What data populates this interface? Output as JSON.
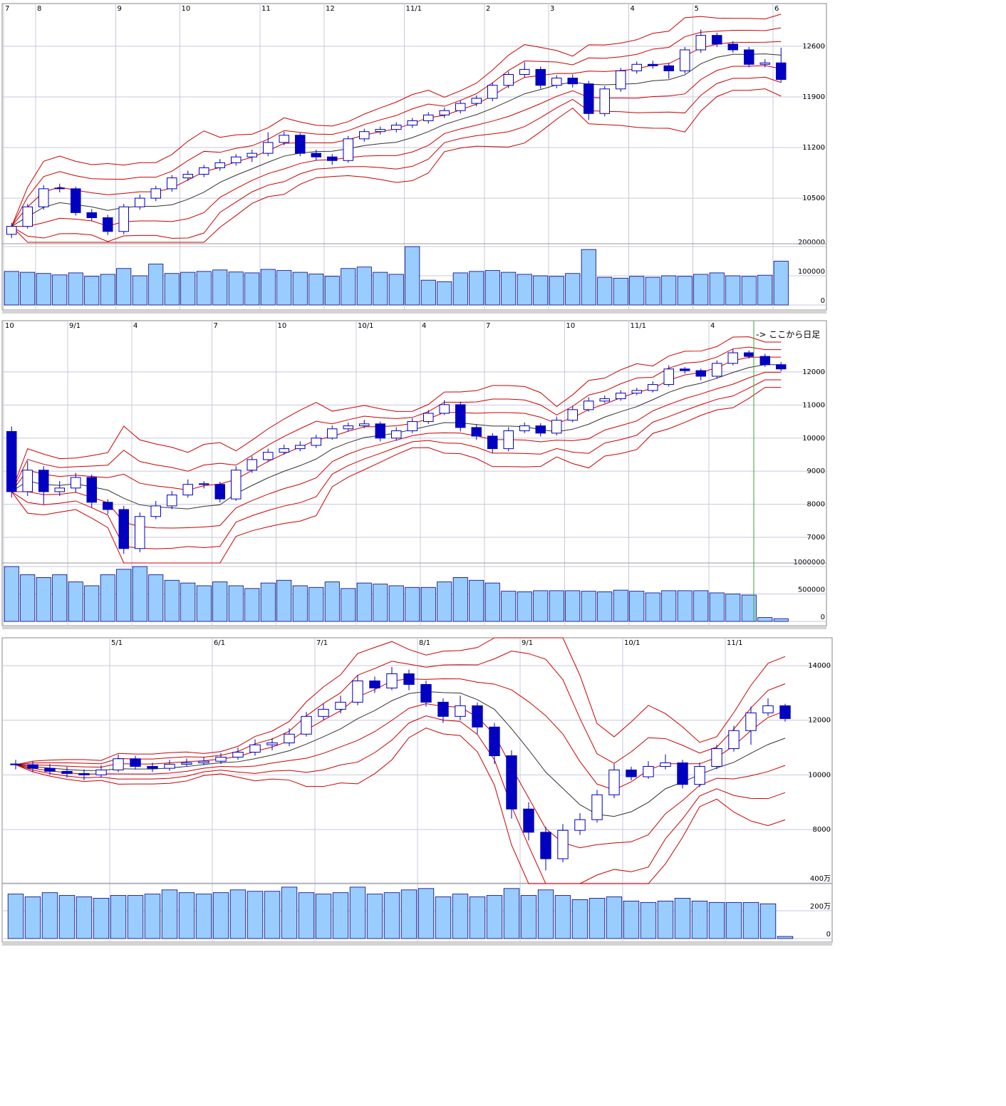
{
  "chart_data": [
    {
      "type": "candlestick",
      "xticks": [
        {
          "value": 0,
          "label": "7"
        },
        {
          "value": 2,
          "label": "8"
        },
        {
          "value": 7,
          "label": "9"
        },
        {
          "value": 11,
          "label": "10"
        },
        {
          "value": 16,
          "label": "11"
        },
        {
          "value": 20,
          "label": "12"
        },
        {
          "value": 25,
          "label": "11/1"
        },
        {
          "value": 30,
          "label": "2"
        },
        {
          "value": 34,
          "label": "3"
        },
        {
          "value": 39,
          "label": "4"
        },
        {
          "value": 43,
          "label": "5"
        },
        {
          "value": 48,
          "label": "6"
        }
      ],
      "ylim": [
        9890,
        13190
      ],
      "yticks": [
        10500,
        11200,
        11900,
        12600
      ],
      "volume_ylim": [
        0,
        209800
      ],
      "volume_yticks": [
        0,
        100000,
        200000
      ],
      "up_color": "#ffffff",
      "down_color": "#0000c0",
      "volume_color": "#99ccff",
      "band_color": "#cc0000",
      "ohlc": [
        [
          10000,
          10160,
          9950,
          10110
        ],
        [
          10110,
          10420,
          10080,
          10380
        ],
        [
          10380,
          10680,
          10340,
          10630
        ],
        [
          10640,
          10700,
          10580,
          10630
        ],
        [
          10630,
          10660,
          10260,
          10300
        ],
        [
          10300,
          10350,
          10190,
          10230
        ],
        [
          10230,
          10270,
          9990,
          10040
        ],
        [
          10040,
          10420,
          10000,
          10380
        ],
        [
          10380,
          10550,
          10340,
          10500
        ],
        [
          10500,
          10670,
          10460,
          10630
        ],
        [
          10630,
          10820,
          10590,
          10780
        ],
        [
          10780,
          10880,
          10740,
          10830
        ],
        [
          10830,
          10960,
          10790,
          10920
        ],
        [
          10920,
          11040,
          10880,
          10990
        ],
        [
          10990,
          11110,
          10950,
          11070
        ],
        [
          11070,
          11170,
          11000,
          11120
        ],
        [
          11120,
          11410,
          11080,
          11270
        ],
        [
          11270,
          11420,
          11230,
          11370
        ],
        [
          11370,
          11400,
          11080,
          11120
        ],
        [
          11120,
          11170,
          11020,
          11070
        ],
        [
          11070,
          11110,
          10960,
          11020
        ],
        [
          11020,
          11360,
          10990,
          11320
        ],
        [
          11320,
          11460,
          11280,
          11420
        ],
        [
          11420,
          11490,
          11380,
          11450
        ],
        [
          11450,
          11550,
          11410,
          11510
        ],
        [
          11510,
          11610,
          11470,
          11570
        ],
        [
          11570,
          11690,
          11530,
          11650
        ],
        [
          11650,
          11750,
          11610,
          11710
        ],
        [
          11710,
          11850,
          11670,
          11810
        ],
        [
          11810,
          11920,
          11770,
          11880
        ],
        [
          11880,
          12100,
          11840,
          12060
        ],
        [
          12060,
          12250,
          12020,
          12210
        ],
        [
          12210,
          12380,
          12170,
          12280
        ],
        [
          12280,
          12320,
          12010,
          12060
        ],
        [
          12060,
          12200,
          12020,
          12160
        ],
        [
          12160,
          12210,
          12030,
          12080
        ],
        [
          12080,
          12120,
          11580,
          11670
        ],
        [
          11670,
          12050,
          11630,
          12010
        ],
        [
          12010,
          12300,
          11970,
          12260
        ],
        [
          12260,
          12390,
          12220,
          12350
        ],
        [
          12350,
          12400,
          12290,
          12330
        ],
        [
          12330,
          12370,
          12150,
          12260
        ],
        [
          12260,
          12590,
          12220,
          12550
        ],
        [
          12550,
          12830,
          12510,
          12750
        ],
        [
          12750,
          12790,
          12590,
          12630
        ],
        [
          12630,
          12670,
          12510,
          12550
        ],
        [
          12550,
          12590,
          12310,
          12350
        ],
        [
          12350,
          12420,
          12310,
          12370
        ],
        [
          12370,
          12580,
          12100,
          12140
        ]
      ],
      "volume": [
        115000,
        112000,
        108000,
        103000,
        110000,
        98000,
        105000,
        125000,
        100000,
        140000,
        108000,
        112000,
        115000,
        120000,
        113000,
        110000,
        122000,
        118000,
        112000,
        106000,
        98000,
        125000,
        130000,
        112000,
        105000,
        200000,
        85000,
        80000,
        110000,
        115000,
        118000,
        112000,
        105000,
        100000,
        98000,
        108000,
        190000,
        95000,
        92000,
        98000,
        95000,
        100000,
        98000,
        105000,
        110000,
        100000,
        98000,
        102000,
        150000
      ]
    },
    {
      "type": "candlestick",
      "xticks": [
        {
          "value": 0,
          "label": "10"
        },
        {
          "value": 4,
          "label": "9/1"
        },
        {
          "value": 8,
          "label": "4"
        },
        {
          "value": 13,
          "label": "7"
        },
        {
          "value": 17,
          "label": "10"
        },
        {
          "value": 22,
          "label": "10/1"
        },
        {
          "value": 26,
          "label": "4"
        },
        {
          "value": 30,
          "label": "7"
        },
        {
          "value": 35,
          "label": "10"
        },
        {
          "value": 39,
          "label": "11/1"
        },
        {
          "value": 44,
          "label": "4"
        }
      ],
      "ylim": [
        6224,
        13550
      ],
      "yticks": [
        7000,
        8000,
        9000,
        10000,
        11000,
        12000
      ],
      "volume_ylim": [
        0,
        1065000
      ],
      "volume_yticks": [
        0,
        500000,
        1000000
      ],
      "annotation": "-> ここから日足",
      "annotation_color": "#33aa33",
      "up_color": "#ffffff",
      "down_color": "#0000c0",
      "volume_color": "#99ccff",
      "band_color": "#cc0000",
      "ohlc": [
        [
          10200,
          10350,
          8200,
          8380
        ],
        [
          8380,
          9300,
          8250,
          9030
        ],
        [
          9030,
          9150,
          8000,
          8380
        ],
        [
          8380,
          8700,
          8250,
          8490
        ],
        [
          8490,
          8950,
          8350,
          8810
        ],
        [
          8810,
          8900,
          7900,
          8060
        ],
        [
          8060,
          8150,
          7700,
          7840
        ],
        [
          7840,
          7950,
          6500,
          6660
        ],
        [
          6660,
          7750,
          6550,
          7630
        ],
        [
          7630,
          8100,
          7550,
          7950
        ],
        [
          7950,
          8400,
          7850,
          8280
        ],
        [
          8280,
          8750,
          8200,
          8600
        ],
        [
          8620,
          8700,
          8480,
          8600
        ],
        [
          8600,
          8680,
          8050,
          8160
        ],
        [
          8160,
          9150,
          8100,
          9030
        ],
        [
          9030,
          9450,
          8950,
          9350
        ],
        [
          9350,
          9680,
          9280,
          9570
        ],
        [
          9570,
          9800,
          9500,
          9680
        ],
        [
          9680,
          9900,
          9600,
          9780
        ],
        [
          9780,
          10100,
          9700,
          10000
        ],
        [
          10000,
          10380,
          9950,
          10280
        ],
        [
          10280,
          10470,
          10200,
          10370
        ],
        [
          10370,
          10550,
          10300,
          10430
        ],
        [
          10430,
          10500,
          9900,
          10000
        ],
        [
          10000,
          10330,
          9920,
          10220
        ],
        [
          10220,
          10600,
          10150,
          10500
        ],
        [
          10500,
          10850,
          10430,
          10750
        ],
        [
          10750,
          11150,
          10700,
          11010
        ],
        [
          11010,
          11100,
          10200,
          10320
        ],
        [
          10320,
          10420,
          9950,
          10060
        ],
        [
          10060,
          10150,
          9550,
          9680
        ],
        [
          9680,
          10330,
          9600,
          10220
        ],
        [
          10220,
          10470,
          10150,
          10370
        ],
        [
          10370,
          10450,
          10050,
          10150
        ],
        [
          10150,
          10650,
          10080,
          10540
        ],
        [
          10540,
          10970,
          10480,
          10860
        ],
        [
          10860,
          11230,
          10800,
          11120
        ],
        [
          11120,
          11290,
          11060,
          11190
        ],
        [
          11190,
          11450,
          11130,
          11360
        ],
        [
          11360,
          11520,
          11300,
          11440
        ],
        [
          11440,
          11720,
          11380,
          11620
        ],
        [
          11620,
          12200,
          11560,
          12090
        ],
        [
          12090,
          12150,
          11950,
          12040
        ],
        [
          12040,
          12100,
          11750,
          11870
        ],
        [
          11870,
          12350,
          11800,
          12260
        ],
        [
          12260,
          12700,
          12200,
          12580
        ],
        [
          12580,
          12650,
          12400,
          12470
        ],
        [
          12470,
          12550,
          12150,
          12220
        ],
        [
          12220,
          12300,
          12020,
          12090
        ]
      ],
      "volume": [
        1000000,
        850000,
        800000,
        850000,
        720000,
        650000,
        850000,
        950000,
        1000000,
        850000,
        750000,
        700000,
        650000,
        720000,
        650000,
        600000,
        700000,
        750000,
        650000,
        620000,
        720000,
        600000,
        700000,
        680000,
        650000,
        620000,
        620000,
        720000,
        800000,
        750000,
        700000,
        550000,
        540000,
        560000,
        560000,
        560000,
        550000,
        540000,
        570000,
        550000,
        520000,
        560000,
        560000,
        560000,
        520000,
        500000,
        480000,
        70000,
        50000
      ]
    },
    {
      "type": "candlestick",
      "xticks": [
        {
          "value": 6,
          "label": "5/1"
        },
        {
          "value": 12,
          "label": "6/1"
        },
        {
          "value": 18,
          "label": "7/1"
        },
        {
          "value": 24,
          "label": "8/1"
        },
        {
          "value": 30,
          "label": "9/1"
        },
        {
          "value": 36,
          "label": "10/1"
        },
        {
          "value": 42,
          "label": "11/1"
        }
      ],
      "ylim": [
        6018,
        15017
      ],
      "yticks": [
        8000,
        10000,
        12000,
        14000
      ],
      "volume_ylim": [
        0,
        3950000
      ],
      "volume_yticks": [
        0,
        {
          "value": 2000000,
          "label": "200万"
        },
        {
          "value": 4000000,
          "label": "400万"
        }
      ],
      "up_color": "#ffffff",
      "down_color": "#0000c0",
      "volume_color": "#99ccff",
      "band_color": "#cc0000",
      "ohlc": [
        [
          10400,
          10550,
          10200,
          10370
        ],
        [
          10370,
          10500,
          10100,
          10240
        ],
        [
          10240,
          10400,
          10000,
          10130
        ],
        [
          10130,
          10300,
          9900,
          10050
        ],
        [
          10050,
          10200,
          9800,
          10000
        ],
        [
          10000,
          10350,
          9900,
          10180
        ],
        [
          10180,
          10750,
          10100,
          10590
        ],
        [
          10590,
          10700,
          10200,
          10310
        ],
        [
          10310,
          10450,
          10100,
          10240
        ],
        [
          10240,
          10550,
          10150,
          10390
        ],
        [
          10390,
          10600,
          10300,
          10440
        ],
        [
          10440,
          10650,
          10350,
          10500
        ],
        [
          10500,
          10800,
          10400,
          10650
        ],
        [
          10650,
          11000,
          10550,
          10830
        ],
        [
          10830,
          11300,
          10700,
          11100
        ],
        [
          11100,
          11350,
          10900,
          11170
        ],
        [
          11170,
          11700,
          11050,
          11490
        ],
        [
          11490,
          12300,
          11400,
          12140
        ],
        [
          12140,
          12600,
          12000,
          12400
        ],
        [
          12400,
          12900,
          12250,
          12660
        ],
        [
          12660,
          13650,
          12550,
          13440
        ],
        [
          13440,
          13600,
          13000,
          13180
        ],
        [
          13180,
          13950,
          13100,
          13700
        ],
        [
          13700,
          13850,
          13100,
          13310
        ],
        [
          13310,
          13450,
          12500,
          12660
        ],
        [
          12660,
          12800,
          11900,
          12140
        ],
        [
          12140,
          12900,
          12000,
          12530
        ],
        [
          12530,
          12650,
          11500,
          11750
        ],
        [
          11750,
          11900,
          10400,
          10700
        ],
        [
          10700,
          10900,
          8400,
          8750
        ],
        [
          8750,
          9000,
          7600,
          7900
        ],
        [
          7900,
          8100,
          6500,
          6930
        ],
        [
          6930,
          8200,
          6800,
          7970
        ],
        [
          7970,
          8600,
          7800,
          8360
        ],
        [
          8360,
          9450,
          8250,
          9270
        ],
        [
          9270,
          10400,
          9150,
          10180
        ],
        [
          10180,
          10300,
          9800,
          9930
        ],
        [
          9930,
          10500,
          9850,
          10310
        ],
        [
          10310,
          10750,
          10200,
          10440
        ],
        [
          10440,
          10550,
          9500,
          9650
        ],
        [
          9650,
          10450,
          9550,
          10310
        ],
        [
          10310,
          11100,
          10200,
          10960
        ],
        [
          10960,
          11800,
          10850,
          11620
        ],
        [
          11620,
          12500,
          11100,
          12270
        ],
        [
          12270,
          12800,
          12150,
          12530
        ],
        [
          12530,
          12600,
          11950,
          12060
        ]
      ],
      "volume": [
        3200000,
        3000000,
        3300000,
        3100000,
        3000000,
        2900000,
        3100000,
        3100000,
        3200000,
        3500000,
        3300000,
        3200000,
        3300000,
        3500000,
        3400000,
        3400000,
        3700000,
        3300000,
        3200000,
        3300000,
        3700000,
        3200000,
        3300000,
        3500000,
        3600000,
        3000000,
        3200000,
        3000000,
        3100000,
        3600000,
        3100000,
        3500000,
        3100000,
        2800000,
        2900000,
        3000000,
        2700000,
        2600000,
        2700000,
        2900000,
        2700000,
        2600000,
        2600000,
        2600000,
        2500000,
        150000
      ]
    }
  ]
}
